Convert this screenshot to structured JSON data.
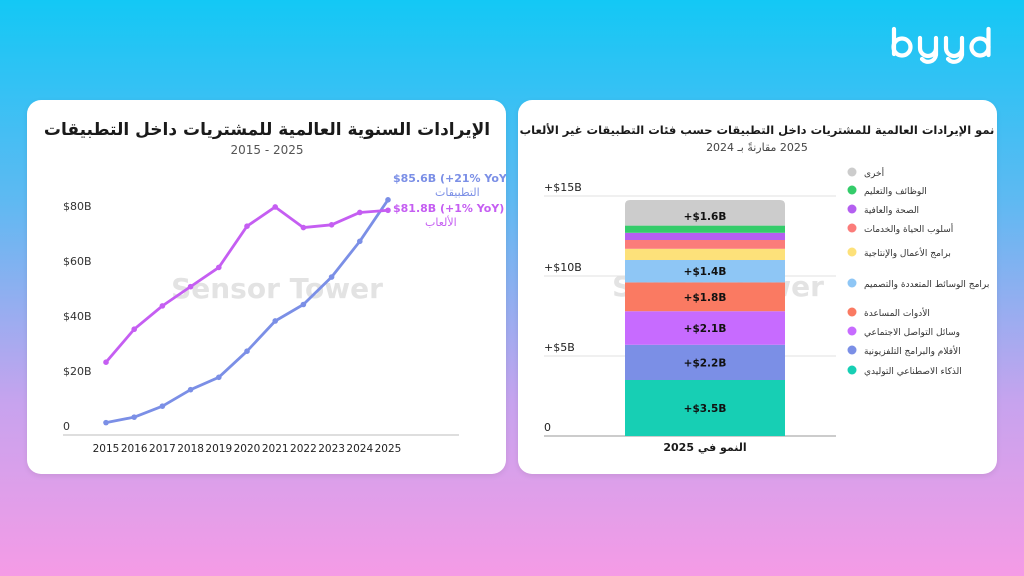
{
  "brand": {
    "logo_text": "byyd"
  },
  "colors": {
    "apps": "#7b8fe6",
    "games": "#c55ef2",
    "axis": "#9a9a9a",
    "grid": "#e6e6e6",
    "ytick": "#333333"
  },
  "watermark": "Sensor Tower",
  "chart_data": [
    {
      "type": "line",
      "title": "الإيرادات السنوية العالمية للمشتريات داخل التطبيقات",
      "subtitle": "2015 - 2025",
      "x": [
        "2015",
        "2016",
        "2017",
        "2018",
        "2019",
        "2020",
        "2021",
        "2022",
        "2023",
        "2024",
        "2025"
      ],
      "y_ticks": [
        {
          "v": 0,
          "label": "0"
        },
        {
          "v": 20,
          "label": "$20B"
        },
        {
          "v": 40,
          "label": "$40B"
        },
        {
          "v": 60,
          "label": "$60B"
        },
        {
          "v": 80,
          "label": "$80B"
        }
      ],
      "ylim": [
        0,
        95
      ],
      "series": [
        {
          "key": "apps",
          "name": "التطبيقات",
          "values": [
            4.5,
            6.5,
            10.5,
            16.5,
            21,
            30.5,
            41.5,
            47.5,
            57.5,
            70.5,
            85.6
          ],
          "end_label": "$85.6B (+21% YoY)"
        },
        {
          "key": "games",
          "name": "الألعاب",
          "values": [
            26.5,
            38.5,
            47,
            54,
            61,
            76,
            83,
            75.5,
            76.5,
            81,
            81.8
          ],
          "end_label": "$81.8B (+1% YoY)"
        }
      ]
    },
    {
      "type": "bar",
      "title": "نمو الإيرادات العالمية للمشتريات داخل التطبيقات حسب فئات التطبيقات غير الألعاب",
      "subtitle": "2025 مقارنةً بـ 2024",
      "categories": [
        "النمو في 2025"
      ],
      "y_ticks": [
        {
          "v": 0,
          "label": "0"
        },
        {
          "v": 5,
          "label": "+$5B"
        },
        {
          "v": 10,
          "label": "+$10B"
        },
        {
          "v": 15,
          "label": "+$15B"
        }
      ],
      "ylim": [
        0,
        15
      ],
      "stack": [
        {
          "name": "الذكاء الاصطناعي التوليدي",
          "value": 3.5,
          "label": "+$3.5B",
          "color": "#17cfb4"
        },
        {
          "name": "الأفلام والبرامج التلفزيونية",
          "value": 2.2,
          "label": "+$2.2B",
          "color": "#7b8fe6"
        },
        {
          "name": "وسائل التواصل الاجتماعي",
          "value": 2.1,
          "label": "+$2.1B",
          "color": "#c76bff"
        },
        {
          "name": "الأدوات المساعدة",
          "value": 1.8,
          "label": "+$1.8B",
          "color": "#fa7a62"
        },
        {
          "name": "برامج الوسائط المتعددة والتصميم",
          "value": 1.4,
          "label": "+$1.4B",
          "color": "#8ec6f5"
        },
        {
          "name": "برامج الأعمال والإنتاجية",
          "value": 0.7,
          "label": "",
          "color": "#fde17a"
        },
        {
          "name": "أسلوب الحياة والخدمات",
          "value": 0.55,
          "label": "",
          "color": "#fb7c7a"
        },
        {
          "name": "الصحة والعافية",
          "value": 0.45,
          "label": "",
          "color": "#b45ff0"
        },
        {
          "name": "الوظائف والتعليم",
          "value": 0.45,
          "label": "",
          "color": "#34cc6a"
        },
        {
          "name": "أخرى",
          "value": 1.6,
          "label": "+$1.6B",
          "color": "#cccccc"
        }
      ],
      "legend": [
        {
          "name": "أخرى",
          "color": "#cccccc"
        },
        {
          "name": "الوظائف والتعليم",
          "color": "#34cc6a"
        },
        {
          "name": "الصحة والعافية",
          "color": "#b45ff0"
        },
        {
          "name": "أسلوب الحياة والخدمات",
          "color": "#fb7c7a"
        },
        {
          "name": "برامج الأعمال والإنتاجية",
          "color": "#fde17a"
        },
        {
          "name": "برامج الوسائط المتعددة والتصميم",
          "color": "#8ec6f5"
        },
        {
          "name": "الأدوات المساعدة",
          "color": "#fa7a62"
        },
        {
          "name": "وسائل التواصل الاجتماعي",
          "color": "#c76bff"
        },
        {
          "name": "الأفلام والبرامج التلفزيونية",
          "color": "#7b8fe6"
        },
        {
          "name": "الذكاء الاصطناعي التوليدي",
          "color": "#17cfb4"
        }
      ],
      "legend_placement": "right"
    }
  ]
}
